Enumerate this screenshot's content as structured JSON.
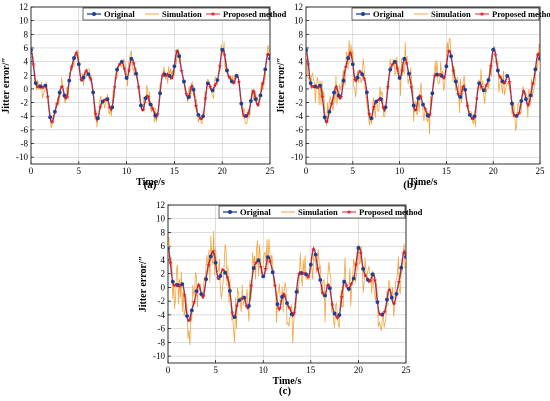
{
  "colors": {
    "original": "#1f3f94",
    "simulation": "#f2a640",
    "proposed": "#e0212b",
    "grid": "#bdbdbd"
  },
  "chart_data": [
    {
      "type": "line",
      "panel_label": "(a)",
      "xlabel": "Time/s",
      "ylabel": "Jitter error/″",
      "xlim": [
        0,
        25
      ],
      "ylim": [
        -11,
        12
      ],
      "xticks": [
        0,
        5,
        10,
        15,
        20,
        25
      ],
      "yticks": [
        -10,
        -8,
        -6,
        -4,
        -2,
        0,
        2,
        4,
        6,
        8,
        10,
        12
      ],
      "grid": true,
      "legend_position": "top",
      "noise_level": "low",
      "series": [
        {
          "name": "Original",
          "marker": "circle"
        },
        {
          "name": "Simulation",
          "marker": "none"
        },
        {
          "name": "Proposed method",
          "marker": "star"
        }
      ]
    },
    {
      "type": "line",
      "panel_label": "(b)",
      "xlabel": "Time/s",
      "ylabel": "Jitter error/″",
      "xlim": [
        0,
        25
      ],
      "ylim": [
        -11,
        12
      ],
      "xticks": [
        0,
        5,
        10,
        15,
        20,
        25
      ],
      "yticks": [
        -10,
        -8,
        -6,
        -4,
        -2,
        0,
        2,
        4,
        6,
        8,
        10,
        12
      ],
      "grid": true,
      "legend_position": "top",
      "noise_level": "medium",
      "series": [
        {
          "name": "Original",
          "marker": "circle"
        },
        {
          "name": "Simulation",
          "marker": "none"
        },
        {
          "name": "Proposed method",
          "marker": "star"
        }
      ]
    },
    {
      "type": "line",
      "panel_label": "(c)",
      "xlabel": "Time/s",
      "ylabel": "Jitter error/″",
      "xlim": [
        0,
        25
      ],
      "ylim": [
        -11,
        12
      ],
      "xticks": [
        0,
        5,
        10,
        15,
        20,
        25
      ],
      "yticks": [
        -10,
        -8,
        -6,
        -4,
        -2,
        0,
        2,
        4,
        6,
        8,
        10,
        12
      ],
      "grid": true,
      "legend_position": "top",
      "noise_level": "high",
      "series": [
        {
          "name": "Original",
          "marker": "circle"
        },
        {
          "name": "Simulation",
          "marker": "none"
        },
        {
          "name": "Proposed method",
          "marker": "star"
        }
      ]
    }
  ]
}
